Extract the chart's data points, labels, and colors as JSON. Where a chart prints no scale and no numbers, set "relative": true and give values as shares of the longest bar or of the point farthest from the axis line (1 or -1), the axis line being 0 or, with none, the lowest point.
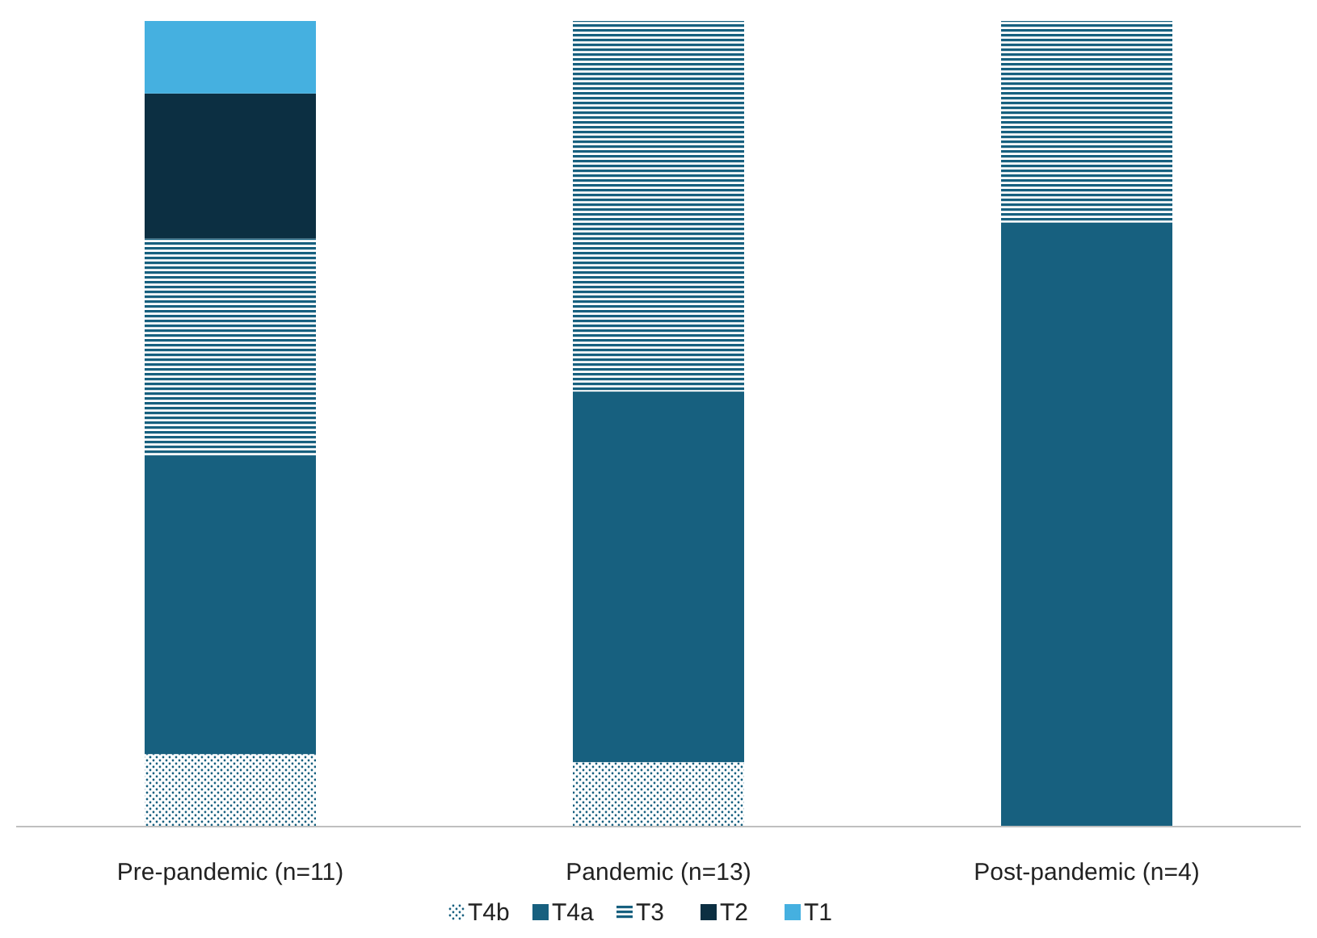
{
  "chart_data": {
    "type": "bar",
    "stacked": true,
    "relative": true,
    "categories": [
      "Pre-pandemic (n=11)",
      "Pandemic (n=13)",
      "Post-pandemic (n=4)"
    ],
    "series": [
      {
        "name": "T4b",
        "color": "#17607f",
        "values": [
          0.09,
          0.08,
          0
        ]
      },
      {
        "name": "T4a",
        "color": "#17607f",
        "values": [
          0.37,
          0.46,
          0.75
        ]
      },
      {
        "name": "T3",
        "color": "#17607f",
        "values": [
          0.27,
          0.46,
          0.25
        ]
      },
      {
        "name": "T2",
        "color": "#0c2f42",
        "values": [
          0.18,
          0,
          0
        ]
      },
      {
        "name": "T1",
        "color": "#45b0e0",
        "values": [
          0.09,
          0,
          0
        ]
      }
    ],
    "legend": "bottom"
  }
}
